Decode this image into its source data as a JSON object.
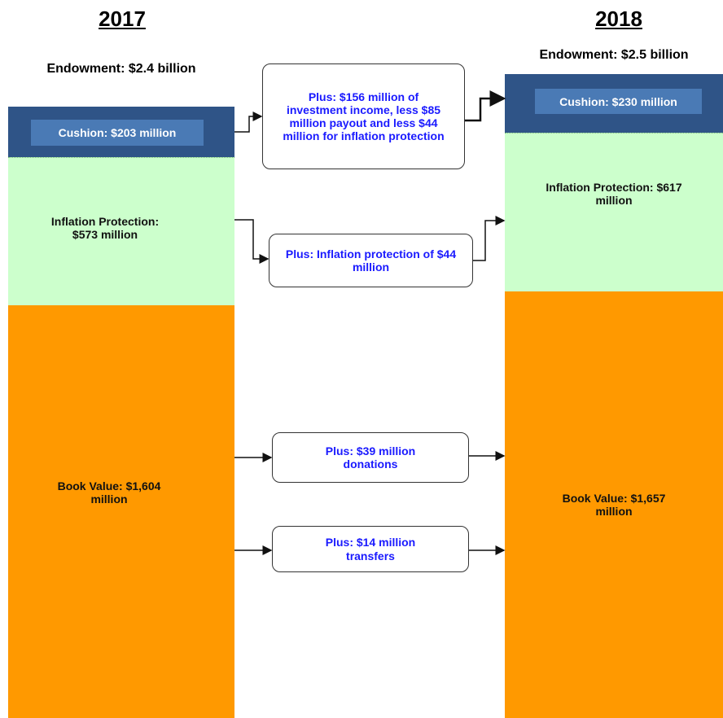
{
  "left": {
    "year": "2017",
    "endowment": "Endowment: $2.4 billion",
    "cushion": "Cushion: $203 million",
    "inflation": "Inflation Protection: $573 million",
    "book_value": "Book Value: $1,604 million"
  },
  "right": {
    "year": "2018",
    "endowment": "Endowment: $2.5 billion",
    "cushion": "Cushion: $230 million",
    "inflation": "Inflation Protection: $617 million",
    "book_value": "Book Value: $1,657 million"
  },
  "transitions": [
    "Plus: $156 million of investment income, less $85 million payout and less $44 million for inflation protection",
    "Plus: Inflation protection of $44 million",
    "Plus: $39 million donations",
    "Plus: $14 million transfers"
  ]
}
